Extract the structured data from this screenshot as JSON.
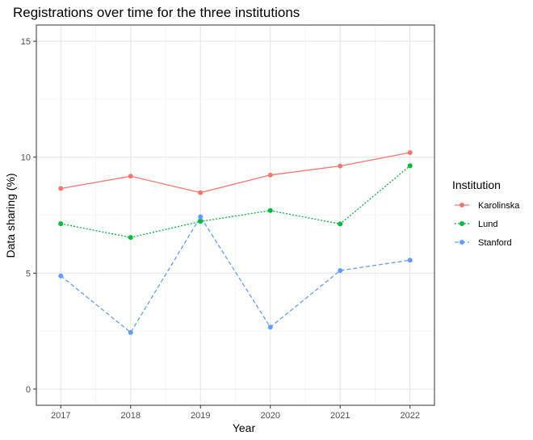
{
  "chart_data": {
    "type": "line",
    "title": "Registrations over time for the three institutions",
    "xlabel": "Year",
    "ylabel": "Data sharing (%)",
    "x": [
      2017,
      2018,
      2019,
      2020,
      2021,
      2022
    ],
    "xticks": [
      "2017",
      "2018",
      "2019",
      "2020",
      "2021",
      "2022"
    ],
    "yticks": [
      "0",
      "5",
      "10",
      "15"
    ],
    "ylim": [
      -0.7,
      15.7
    ],
    "grid": true,
    "legend": {
      "title": "Institution",
      "placement": "right"
    },
    "series": [
      {
        "name": "Karolinska",
        "color": "#F8766D",
        "dash": "solid",
        "values": [
          8.65,
          9.18,
          8.47,
          9.23,
          9.62,
          10.2
        ]
      },
      {
        "name": "Lund",
        "color": "#00BA38",
        "dash": "dotted",
        "values": [
          7.13,
          6.54,
          7.23,
          7.7,
          7.12,
          9.63
        ]
      },
      {
        "name": "Stanford",
        "color": "#619CFF",
        "dash": "dashed",
        "values": [
          4.88,
          2.44,
          7.43,
          2.67,
          5.11,
          5.56
        ]
      }
    ]
  }
}
